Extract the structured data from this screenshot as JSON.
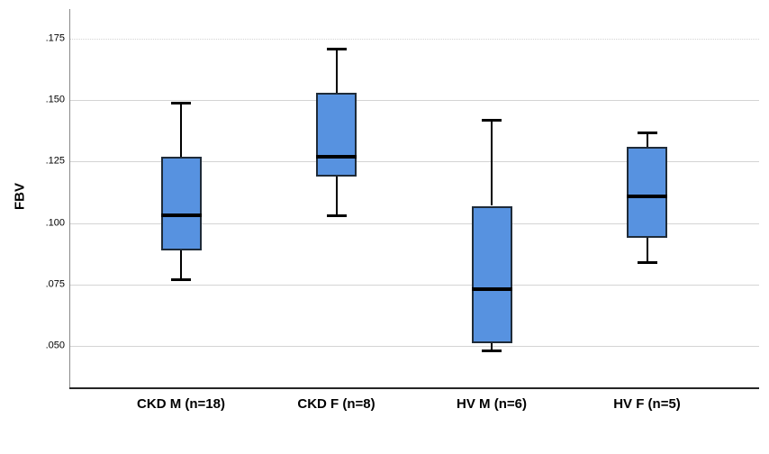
{
  "chart_data": {
    "type": "boxplot",
    "title": "",
    "ylabel": "FBV",
    "xlabel": "",
    "categories": [
      "CKD M (n=18)",
      "CKD F (n=8)",
      "HV M (n=6)",
      "HV F (n=5)"
    ],
    "series": [
      {
        "category": "CKD M (n=18)",
        "n": 18,
        "whisker_low": 0.077,
        "q1": 0.089,
        "median": 0.103,
        "q3": 0.127,
        "whisker_high": 0.149
      },
      {
        "category": "CKD F (n=8)",
        "n": 8,
        "whisker_low": 0.103,
        "q1": 0.119,
        "median": 0.127,
        "q3": 0.153,
        "whisker_high": 0.171
      },
      {
        "category": "HV M (n=6)",
        "n": 6,
        "whisker_low": 0.048,
        "q1": 0.051,
        "median": 0.073,
        "q3": 0.107,
        "whisker_high": 0.142
      },
      {
        "category": "HV F (n=5)",
        "n": 5,
        "whisker_low": 0.084,
        "q1": 0.094,
        "median": 0.111,
        "q3": 0.131,
        "whisker_high": 0.137
      }
    ],
    "y_axis": {
      "range": [
        0.0324,
        0.1871
      ],
      "ticks": [
        {
          "label": ".050",
          "value": 0.05,
          "gridline": "solid"
        },
        {
          "label": ".075",
          "value": 0.075,
          "gridline": "solid"
        },
        {
          "label": ".100",
          "value": 0.1,
          "gridline": "solid"
        },
        {
          "label": ".125",
          "value": 0.125,
          "gridline": "solid"
        },
        {
          "label": ".150",
          "value": 0.15,
          "gridline": "solid"
        },
        {
          "label": ".175",
          "value": 0.175,
          "gridline": "dotted"
        }
      ]
    },
    "grid": "horizontal",
    "legend_position": "none",
    "colors": {
      "box_fill": "#5792E0",
      "box_border": "#1F2B38",
      "median": "#000000",
      "whisker": "#000000",
      "gridline": "#D4D4D4",
      "y_axis_line": "#8A8A8A",
      "x_axis_line": "#262626",
      "text": "#000000"
    }
  }
}
